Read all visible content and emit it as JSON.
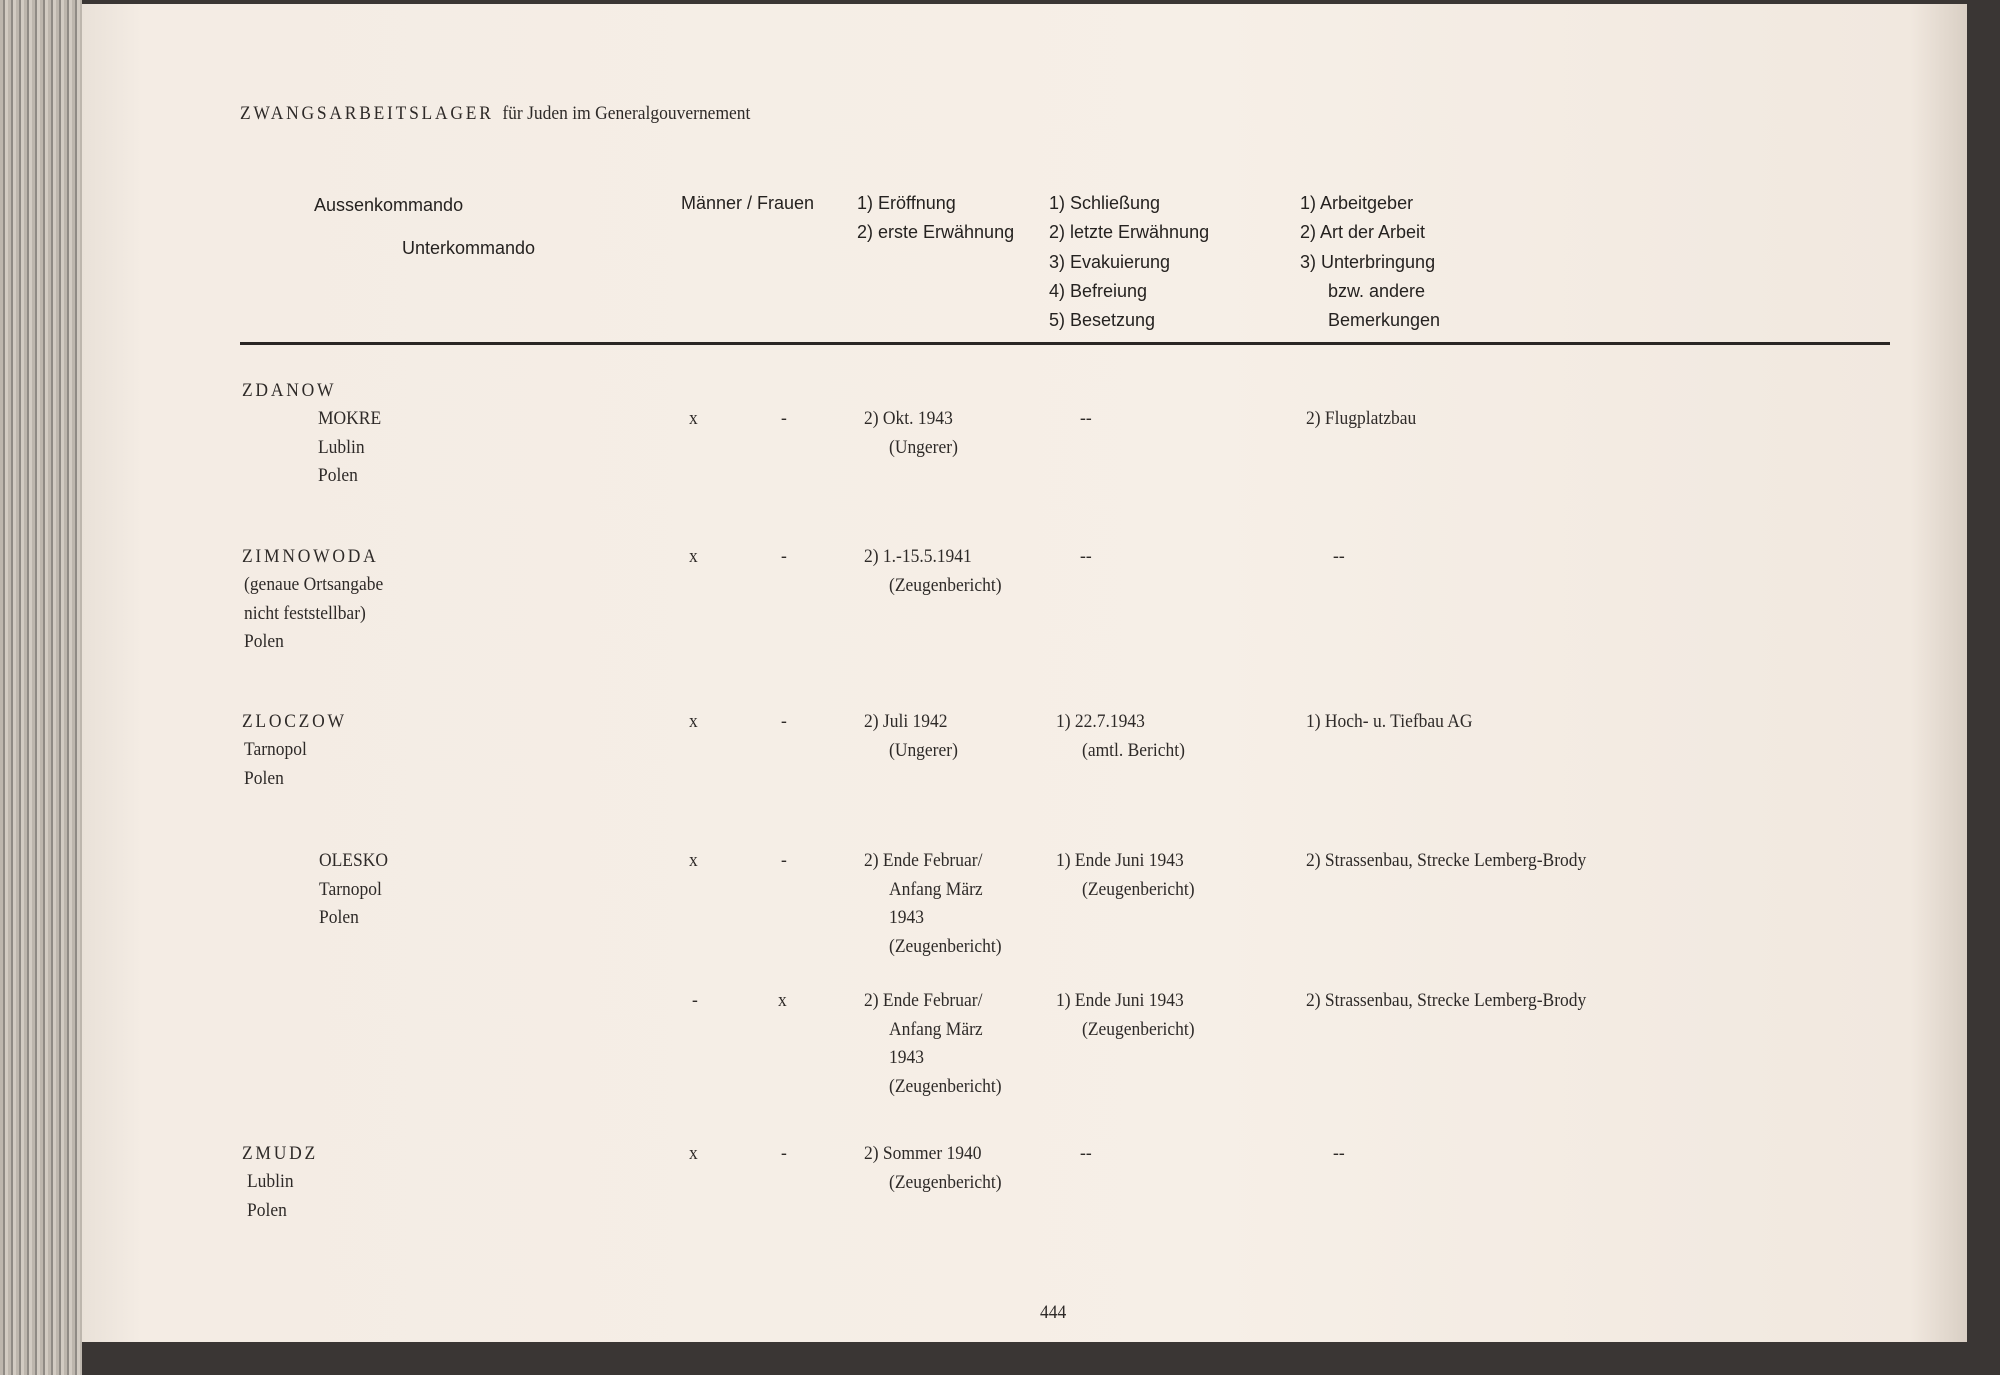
{
  "page_title": {
    "caps": "ZWANGSARBEITSLAGER",
    "rest": "für Juden im Generalgouvernement"
  },
  "headers": {
    "aussenkommando": "Aussenkommando",
    "unterkommando": "Unterkommando",
    "maenner_frauen": "Männer / Frauen",
    "eroeffnung": [
      "1) Eröffnung",
      "2) erste Erwähnung"
    ],
    "schliessung": [
      "1) Schließung",
      "2) letzte Erwähnung",
      "3) Evakuierung",
      "4) Befreiung",
      "5) Besetzung"
    ],
    "arbeit": [
      "1) Arbeitgeber",
      "2) Art der Arbeit",
      "3) Unterbringung",
      "bzw. andere",
      "Bemerkungen"
    ]
  },
  "entries": [
    {
      "lager": "ZDANOW",
      "location": [
        "MOKRE",
        "Lublin",
        "Polen"
      ],
      "men": "x",
      "women": "-",
      "opening": [
        "2) Okt. 1943",
        "(Ungerer)"
      ],
      "closing": [
        "--"
      ],
      "work": [
        "2) Flugplatzbau"
      ]
    },
    {
      "lager": "ZIMNOWODA",
      "location": [
        "(genaue Ortsangabe",
        "nicht feststellbar)",
        "Polen"
      ],
      "men": "x",
      "women": "-",
      "opening": [
        "2) 1.-15.5.1941",
        "(Zeugenbericht)"
      ],
      "closing": [
        "--"
      ],
      "work": [
        "--"
      ]
    },
    {
      "lager": "ZLOCZOW",
      "location": [
        "Tarnopol",
        "Polen"
      ],
      "men": "x",
      "women": "-",
      "opening": [
        "2) Juli 1942",
        "(Ungerer)"
      ],
      "closing": [
        "1) 22.7.1943",
        "(amtl. Bericht)"
      ],
      "work": [
        "1) Hoch- u. Tiefbau AG"
      ]
    },
    {
      "lager": null,
      "location": [
        "OLESKO",
        "Tarnopol",
        "Polen"
      ],
      "men": "x",
      "women": "-",
      "opening": [
        "2) Ende Februar/",
        "Anfang März",
        "1943",
        "(Zeugenbericht)"
      ],
      "closing": [
        "1) Ende Juni 1943",
        "(Zeugenbericht)"
      ],
      "work": [
        "2) Strassenbau, Strecke Lemberg-Brody"
      ]
    },
    {
      "lager": null,
      "location": [],
      "men": "-",
      "women": "x",
      "opening": [
        "2) Ende Februar/",
        "Anfang März",
        "1943",
        "(Zeugenbericht)"
      ],
      "closing": [
        "1) Ende Juni 1943",
        "(Zeugenbericht)"
      ],
      "work": [
        "2) Strassenbau, Strecke Lemberg-Brody"
      ]
    },
    {
      "lager": "ZMUDZ",
      "location": [
        "Lublin",
        "Polen"
      ],
      "men": "x",
      "women": "-",
      "opening": [
        "2) Sommer 1940",
        "(Zeugenbericht)"
      ],
      "closing": [
        "--"
      ],
      "work": [
        "--"
      ]
    }
  ],
  "page_number": "444"
}
